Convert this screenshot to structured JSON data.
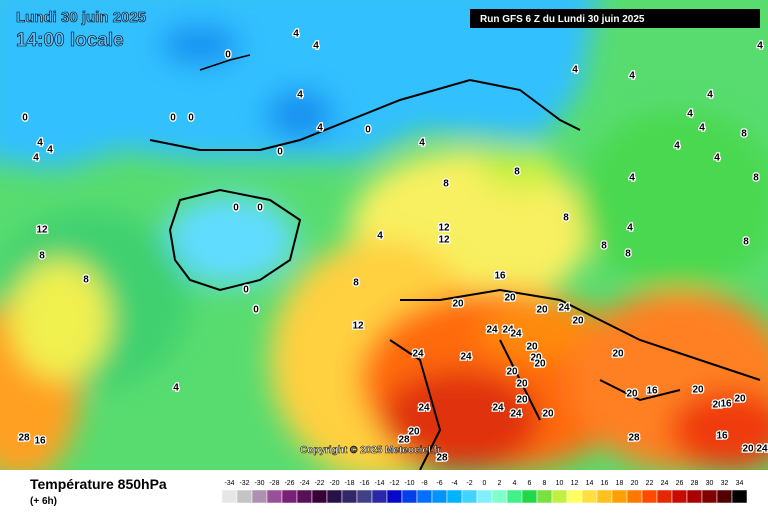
{
  "header": {
    "date": "Lundi 30 juin 2025",
    "time": "14:00 locale",
    "run": "Run GFS 6 Z du Lundi 30 juin 2025",
    "copyright": "Copyright © 2025 Meteociel.fr"
  },
  "footer": {
    "title": "Température 850hPa",
    "step": "(+ 6h)"
  },
  "scale": {
    "values": [
      -34,
      -32,
      -30,
      -28,
      -26,
      -24,
      -22,
      -20,
      -18,
      -16,
      -14,
      -12,
      -10,
      -8,
      -6,
      -4,
      -2,
      0,
      2,
      4,
      6,
      8,
      10,
      12,
      14,
      16,
      18,
      20,
      22,
      24,
      26,
      28,
      30,
      32,
      34
    ],
    "colors": [
      "#e6e6e6",
      "#c4c4c4",
      "#b090b0",
      "#985098",
      "#782078",
      "#581058",
      "#380038",
      "#281048",
      "#302868",
      "#404088",
      "#2828a8",
      "#0808c8",
      "#0040e8",
      "#0070ff",
      "#0094ff",
      "#00b4ff",
      "#40d4ff",
      "#80f0ff",
      "#80ffc8",
      "#40f088",
      "#20d848",
      "#78e040",
      "#c0f040",
      "#ffff60",
      "#ffe040",
      "#ffc020",
      "#ffa000",
      "#ff7800",
      "#ff4a00",
      "#e42800",
      "#c80a00",
      "#a80000",
      "#800000",
      "#500000",
      "#000000"
    ]
  },
  "contour_labels": [
    4,
    4,
    0,
    4,
    4,
    0,
    0,
    0,
    0,
    0,
    4,
    4,
    4,
    4,
    4,
    4,
    4,
    4,
    4,
    4,
    4,
    4,
    8,
    8,
    8,
    8,
    4,
    4,
    8,
    8,
    8,
    8,
    4,
    8,
    12,
    12,
    8,
    8,
    0,
    0,
    0,
    0,
    4,
    12,
    12,
    16,
    20,
    20,
    20,
    24,
    20,
    24,
    24,
    24,
    20,
    24,
    24,
    20,
    20,
    20,
    20,
    20,
    24,
    24,
    24,
    20,
    20,
    20,
    16,
    20,
    20,
    20,
    20,
    28,
    28,
    28,
    16,
    20,
    24,
    28,
    16,
    16
  ]
}
